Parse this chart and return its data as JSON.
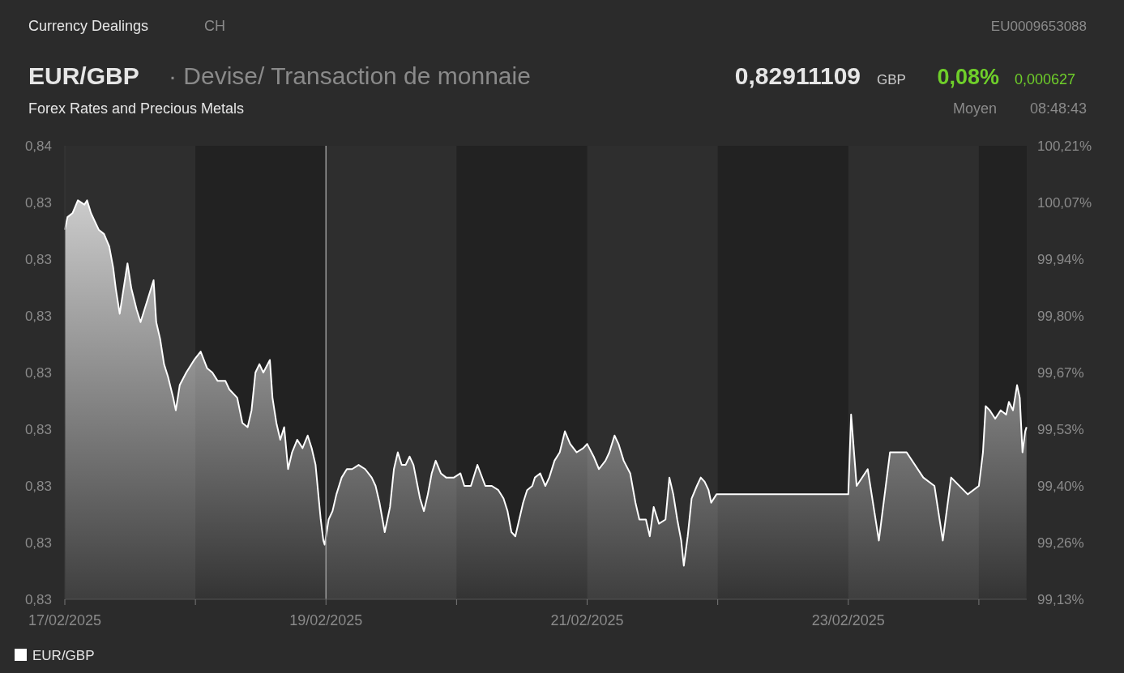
{
  "chart_data": {
    "type": "area",
    "title": "EUR/GBP",
    "subtitle": "· Devise/ Transaction de monnaie",
    "annotations": [
      "Currency Dealings",
      "CH",
      "EU0009653088",
      "0,82911109",
      "GBP",
      "0,08%",
      "0,000627",
      "Forex Rates and Precious Metals",
      "Moyen",
      "08:48:43"
    ],
    "xlim": [
      "2025-02-17T00:00",
      "2025-02-24T08:48"
    ],
    "xticks": [
      {
        "value": "2025-02-17T00:00",
        "label": "17/02/2025"
      },
      {
        "value": "2025-02-18T00:00",
        "label": null
      },
      {
        "value": "2025-02-19T00:00",
        "label": "19/02/2025"
      },
      {
        "value": "2025-02-20T00:00",
        "label": null
      },
      {
        "value": "2025-02-21T00:00",
        "label": "21/02/2025"
      },
      {
        "value": "2025-02-22T00:00",
        "label": null
      },
      {
        "value": "2025-02-23T00:00",
        "label": "23/02/2025"
      },
      {
        "value": "2025-02-24T00:00",
        "label": null
      }
    ],
    "ylim": [
      0.83,
      0.8352
    ],
    "yticks": [
      {
        "value": 0.83,
        "label": "0,83"
      },
      {
        "value": 0.83065,
        "label": "0,83"
      },
      {
        "value": 0.8313,
        "label": "0,83"
      },
      {
        "value": 0.83195,
        "label": "0,83"
      },
      {
        "value": 0.8326,
        "label": "0,83"
      },
      {
        "value": 0.83325,
        "label": "0,83"
      },
      {
        "value": 0.8339,
        "label": "0,83"
      },
      {
        "value": 0.83455,
        "label": "0,83"
      },
      {
        "value": 0.8352,
        "label": "0,84"
      }
    ],
    "y2lim": [
      99.13,
      100.21
    ],
    "y2ticks": [
      {
        "value": 99.13,
        "label": "99,13%"
      },
      {
        "value": 99.265,
        "label": "99,26%"
      },
      {
        "value": 99.4,
        "label": "99,40%"
      },
      {
        "value": 99.535,
        "label": "99,53%"
      },
      {
        "value": 99.67,
        "label": "99,67%"
      },
      {
        "value": 99.805,
        "label": "99,80%"
      },
      {
        "value": 99.94,
        "label": "99,94%"
      },
      {
        "value": 100.075,
        "label": "100,07%"
      },
      {
        "value": 100.21,
        "label": "100,21%"
      }
    ],
    "bands": [
      {
        "axis": "x",
        "from": "2025-02-18T00:00",
        "to": "2025-02-19T00:00",
        "color": "#222222"
      },
      {
        "axis": "x",
        "from": "2025-02-20T00:00",
        "to": "2025-02-21T00:00",
        "color": "#222222"
      },
      {
        "axis": "x",
        "from": "2025-02-22T00:00",
        "to": "2025-02-23T00:00",
        "color": "#222222"
      },
      {
        "axis": "x",
        "from": "2025-02-24T00:00",
        "to": "2025-02-24T08:48",
        "color": "#222222"
      }
    ],
    "ref_lines": [
      {
        "axis": "x",
        "value": "2025-02-19T00:00",
        "color": "#9a9a9a"
      }
    ],
    "legend": "bottom left",
    "marker": "none",
    "line_style": "solid",
    "series": [
      {
        "name": "EUR/GBP",
        "color": "#ffffff",
        "axis": "y2",
        "x": [
          "2025-02-17T00:00",
          "2025-02-17T00:29",
          "2025-02-17T01:26",
          "2025-02-17T02:24",
          "2025-02-17T03:36",
          "2025-02-17T04:05",
          "2025-02-17T04:48",
          "2025-02-17T05:31",
          "2025-02-17T06:14",
          "2025-02-17T07:12",
          "2025-02-17T08:10",
          "2025-02-17T08:53",
          "2025-02-17T09:22",
          "2025-02-17T10:05",
          "2025-02-17T10:48",
          "2025-02-17T11:31",
          "2025-02-17T12:14",
          "2025-02-17T13:12",
          "2025-02-17T13:55",
          "2025-02-17T14:53",
          "2025-02-17T15:36",
          "2025-02-17T16:19",
          "2025-02-17T16:48",
          "2025-02-17T17:31",
          "2025-02-17T18:14",
          "2025-02-17T18:58",
          "2025-02-17T19:55",
          "2025-02-17T20:24",
          "2025-02-17T21:07",
          "2025-02-17T22:19",
          "2025-02-17T23:46",
          "2025-02-18T00:58",
          "2025-02-18T02:10",
          "2025-02-18T03:07",
          "2025-02-18T04:05",
          "2025-02-18T05:31",
          "2025-02-18T06:14",
          "2025-02-18T07:41",
          "2025-02-18T08:38",
          "2025-02-18T09:36",
          "2025-02-18T10:19",
          "2025-02-18T11:02",
          "2025-02-18T11:46",
          "2025-02-18T12:29",
          "2025-02-18T13:41",
          "2025-02-18T14:10",
          "2025-02-18T14:53",
          "2025-02-18T15:36",
          "2025-02-18T16:19",
          "2025-02-18T17:02",
          "2025-02-18T17:46",
          "2025-02-18T18:43",
          "2025-02-18T19:41",
          "2025-02-18T20:38",
          "2025-02-18T21:22",
          "2025-02-18T22:05",
          "2025-02-18T23:02",
          "2025-02-18T23:31",
          "2025-02-18T23:46",
          "2025-02-19T00:29",
          "2025-02-19T01:12",
          "2025-02-19T01:55",
          "2025-02-19T02:53",
          "2025-02-19T03:50",
          "2025-02-19T04:48",
          "2025-02-19T06:00",
          "2025-02-19T07:12",
          "2025-02-19T08:24",
          "2025-02-19T09:07",
          "2025-02-19T09:50",
          "2025-02-19T10:48",
          "2025-02-19T11:46",
          "2025-02-19T12:29",
          "2025-02-19T13:12",
          "2025-02-19T13:55",
          "2025-02-19T14:38",
          "2025-02-19T15:22",
          "2025-02-19T16:05",
          "2025-02-19T17:17",
          "2025-02-19T18:00",
          "2025-02-19T18:43",
          "2025-02-19T19:26",
          "2025-02-19T20:10",
          "2025-02-19T21:07",
          "2025-02-19T22:05",
          "2025-02-19T23:31",
          "2025-02-20T00:43",
          "2025-02-20T01:26",
          "2025-02-20T02:38",
          "2025-02-20T03:50",
          "2025-02-20T05:17",
          "2025-02-20T06:29",
          "2025-02-20T07:41",
          "2025-02-20T08:38",
          "2025-02-20T09:22",
          "2025-02-20T10:05",
          "2025-02-20T10:48",
          "2025-02-20T11:31",
          "2025-02-20T12:14",
          "2025-02-20T12:58",
          "2025-02-20T13:55",
          "2025-02-20T14:24",
          "2025-02-20T15:22",
          "2025-02-20T16:19",
          "2025-02-20T17:02",
          "2025-02-20T18:00",
          "2025-02-20T18:58",
          "2025-02-20T19:55",
          "2025-02-20T20:53",
          "2025-02-20T22:05",
          "2025-02-20T23:17",
          "2025-02-21T00:00",
          "2025-02-21T01:12",
          "2025-02-21T02:10",
          "2025-02-21T03:22",
          "2025-02-21T04:05",
          "2025-02-21T05:02",
          "2025-02-21T05:46",
          "2025-02-21T06:43",
          "2025-02-21T07:55",
          "2025-02-21T08:53",
          "2025-02-21T09:36",
          "2025-02-21T10:48",
          "2025-02-21T11:31",
          "2025-02-21T12:14",
          "2025-02-21T13:12",
          "2025-02-21T14:24",
          "2025-02-21T15:07",
          "2025-02-21T15:50",
          "2025-02-21T16:34",
          "2025-02-21T17:17",
          "2025-02-21T17:46",
          "2025-02-21T18:29",
          "2025-02-21T19:12",
          "2025-02-21T20:10",
          "2025-02-21T20:53",
          "2025-02-21T21:36",
          "2025-02-21T22:19",
          "2025-02-21T22:48",
          "2025-02-21T23:46",
          "2025-02-23T00:00",
          "2025-02-23T00:31",
          "2025-02-23T01:32",
          "2025-02-23T03:34",
          "2025-02-23T05:37",
          "2025-02-23T07:40",
          "2025-02-23T10:43",
          "2025-02-23T13:47",
          "2025-02-23T15:50",
          "2025-02-23T17:22",
          "2025-02-23T18:54",
          "2025-02-23T21:57",
          "2025-02-24T00:00",
          "2025-02-24T00:45",
          "2025-02-24T01:15",
          "2025-02-24T02:00",
          "2025-02-24T03:00",
          "2025-02-24T04:01",
          "2025-02-24T05:01",
          "2025-02-24T05:31",
          "2025-02-24T06:16",
          "2025-02-24T07:01",
          "2025-02-24T07:31",
          "2025-02-24T08:01",
          "2025-02-24T08:31",
          "2025-02-24T08:46"
        ],
        "values": [
          100.01,
          100.04,
          100.05,
          100.08,
          100.07,
          100.08,
          100.05,
          100.03,
          100.01,
          100,
          99.97,
          99.92,
          99.87,
          99.81,
          99.87,
          99.93,
          99.87,
          99.82,
          99.79,
          99.83,
          99.86,
          99.89,
          99.79,
          99.75,
          99.69,
          99.66,
          99.61,
          99.58,
          99.64,
          99.67,
          99.7,
          99.72,
          99.68,
          99.67,
          99.65,
          99.65,
          99.63,
          99.61,
          99.55,
          99.54,
          99.58,
          99.67,
          99.69,
          99.67,
          99.7,
          99.61,
          99.55,
          99.51,
          99.54,
          99.44,
          99.48,
          99.51,
          99.49,
          99.52,
          99.49,
          99.45,
          99.32,
          99.27,
          99.26,
          99.32,
          99.34,
          99.38,
          99.42,
          99.44,
          99.44,
          99.45,
          99.44,
          99.42,
          99.4,
          99.36,
          99.29,
          99.35,
          99.44,
          99.48,
          99.45,
          99.45,
          99.47,
          99.45,
          99.37,
          99.34,
          99.38,
          99.43,
          99.46,
          99.43,
          99.42,
          99.42,
          99.43,
          99.4,
          99.4,
          99.45,
          99.4,
          99.4,
          99.39,
          99.37,
          99.34,
          99.29,
          99.28,
          99.32,
          99.36,
          99.39,
          99.4,
          99.42,
          99.43,
          99.4,
          99.42,
          99.46,
          99.48,
          99.53,
          99.5,
          99.48,
          99.49,
          99.5,
          99.47,
          99.44,
          99.46,
          99.48,
          99.52,
          99.5,
          99.46,
          99.43,
          99.36,
          99.32,
          99.32,
          99.28,
          99.35,
          99.31,
          99.32,
          99.42,
          99.38,
          99.32,
          99.27,
          99.21,
          99.28,
          99.37,
          99.4,
          99.42,
          99.41,
          99.39,
          99.36,
          99.38,
          99.38,
          99.57,
          99.4,
          99.44,
          99.27,
          99.48,
          99.48,
          99.42,
          99.4,
          99.27,
          99.42,
          99.38,
          99.4,
          99.48,
          99.59,
          99.58,
          99.56,
          99.58,
          99.57,
          99.6,
          99.58,
          99.64,
          99.61,
          99.48,
          99.53,
          99.54
        ]
      }
    ]
  }
}
